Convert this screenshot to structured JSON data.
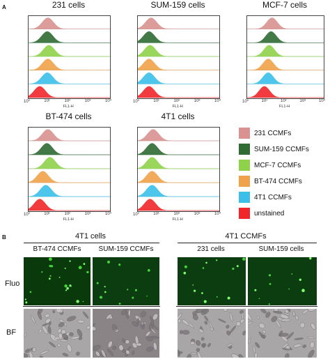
{
  "panels": {
    "a": "A",
    "b": "B"
  },
  "histograms": [
    {
      "title": "231 cells"
    },
    {
      "title": "SUM-159 cells"
    },
    {
      "title": "MCF-7 cells"
    },
    {
      "title": "BT-474 cells"
    },
    {
      "title": "4T1 cells"
    }
  ],
  "axis": {
    "xlabel": "FL1-H",
    "ticks": [
      "10⁰",
      "10¹",
      "10²",
      "10³",
      "10⁴"
    ],
    "scale": "log"
  },
  "legend": [
    {
      "label": "231 CCMFs",
      "color": "#d9928f"
    },
    {
      "label": "SUM-159 CCMFs",
      "color": "#2f6b33"
    },
    {
      "label": "MCF-7 CCMFs",
      "color": "#8ed24a"
    },
    {
      "label": "BT-474 CCMFs",
      "color": "#f0a24a"
    },
    {
      "label": "4T1 CCMFs",
      "color": "#3bbfe8"
    },
    {
      "label": "unstained",
      "color": "#f0262a"
    }
  ],
  "panel_b": {
    "left_group": "4T1 cells",
    "left_cols": [
      "BT-474 CCMFs",
      "SUM-159 CCMFs"
    ],
    "right_group": "4T1 CCMFs",
    "right_cols": [
      "231 cells",
      "SUM-159 cells"
    ],
    "rows": [
      "Fluo",
      "BF"
    ]
  }
}
